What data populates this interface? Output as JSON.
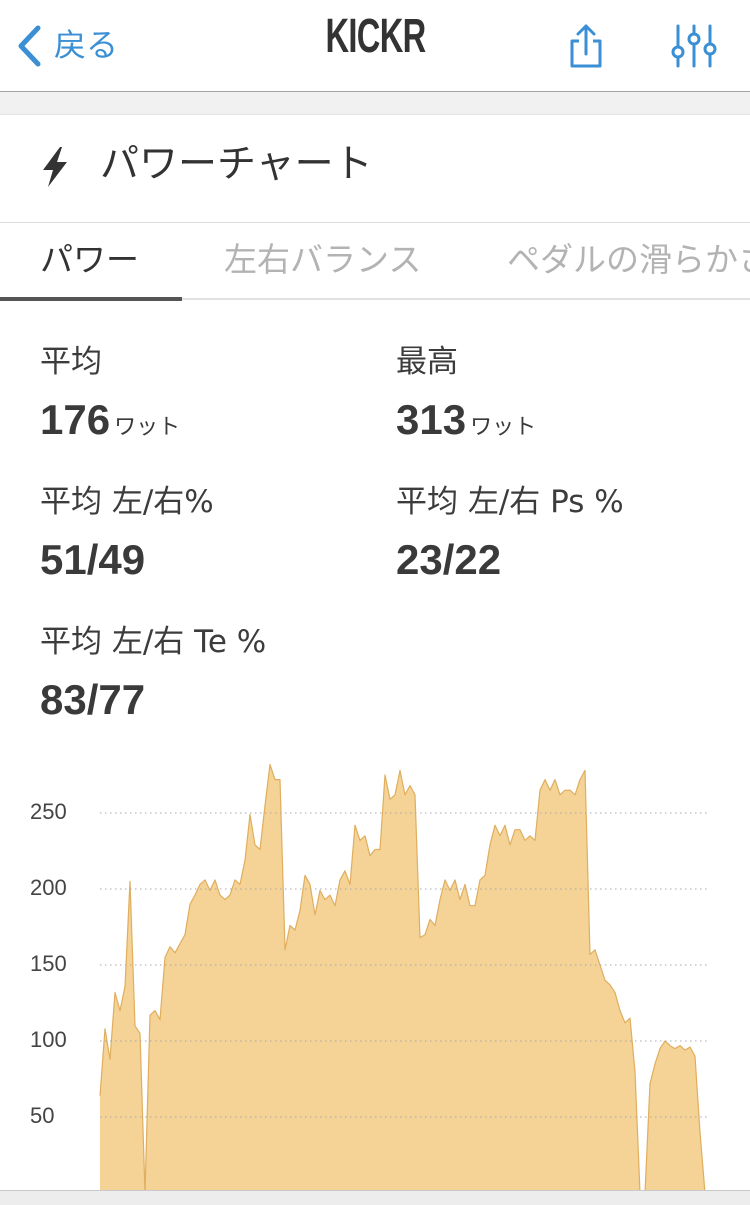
{
  "nav": {
    "back_label": "戻る",
    "back_icon": "chevron-left-icon",
    "logo": "KICKR",
    "share_icon": "share-icon",
    "settings_icon": "sliders-icon",
    "accent_color": "#3a8fd5"
  },
  "section": {
    "icon": "lightning-icon",
    "title": "パワーチャート"
  },
  "tabs": [
    {
      "label": "パワー",
      "active": true
    },
    {
      "label": "左右バランス",
      "active": false
    },
    {
      "label": "ペダルの滑らかさ",
      "active": false
    }
  ],
  "stats": {
    "average": {
      "label": "平均",
      "value": "176",
      "unit": "ワット"
    },
    "max": {
      "label": "最高",
      "value": "313",
      "unit": "ワット"
    },
    "avg_lr": {
      "label": "平均 左/右%",
      "value": "51/49"
    },
    "avg_lr_ps": {
      "label": "平均 左/右 Ps %",
      "value": "23/22"
    },
    "avg_lr_te": {
      "label": "平均 左/右 Te %",
      "value": "83/77"
    }
  },
  "chart_data": {
    "type": "area",
    "values": [
      64,
      108,
      88,
      132,
      120,
      136,
      205,
      110,
      105,
      0,
      117,
      120,
      114,
      155,
      162,
      158,
      164,
      170,
      190,
      196,
      203,
      206,
      199,
      206,
      196,
      193,
      196,
      206,
      203,
      219,
      249,
      229,
      226,
      255,
      282,
      272,
      272,
      160,
      176,
      173,
      186,
      209,
      203,
      183,
      199,
      193,
      196,
      189,
      206,
      212,
      203,
      242,
      232,
      235,
      222,
      226,
      226,
      275,
      259,
      262,
      278,
      262,
      268,
      262,
      168,
      170,
      180,
      176,
      193,
      206,
      199,
      206,
      193,
      203,
      189,
      189,
      206,
      209,
      229,
      242,
      235,
      242,
      229,
      239,
      239,
      232,
      235,
      232,
      265,
      272,
      265,
      272,
      262,
      265,
      265,
      262,
      272,
      278,
      157,
      160,
      150,
      140,
      137,
      132,
      120,
      112,
      115,
      80,
      0,
      0,
      72,
      85,
      95,
      100,
      97,
      95,
      97,
      94,
      96,
      90,
      40,
      0
    ],
    "y_ticks": [
      250,
      200,
      150,
      100,
      50
    ],
    "ylim": [
      0,
      300
    ],
    "grid": true,
    "legend": "none",
    "colors": {
      "fill": "#f5d295",
      "line": "#dfae5e",
      "grid": "#a8a8a8",
      "tick_label": "#444444"
    }
  }
}
